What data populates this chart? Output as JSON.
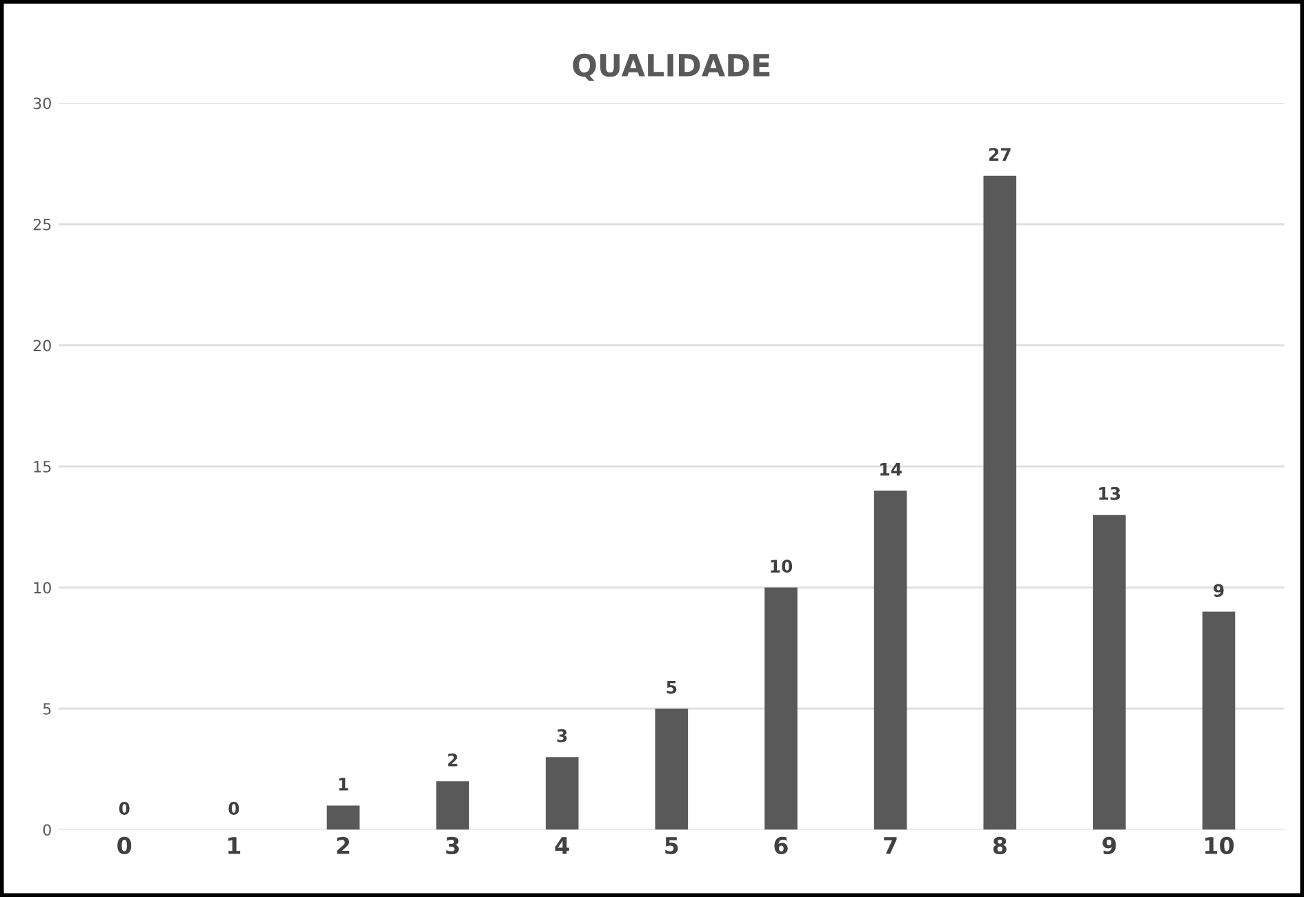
{
  "chart_data": {
    "type": "bar",
    "title": "QUALIDADE",
    "categories": [
      "0",
      "1",
      "2",
      "3",
      "4",
      "5",
      "6",
      "7",
      "8",
      "9",
      "10"
    ],
    "values": [
      0,
      0,
      1,
      2,
      3,
      5,
      10,
      14,
      27,
      13,
      9
    ],
    "color": "#595959",
    "ylim": [
      0,
      30
    ],
    "yticks": [
      0,
      5,
      10,
      15,
      20,
      25,
      30
    ],
    "grid": "y",
    "data_labels": true
  }
}
